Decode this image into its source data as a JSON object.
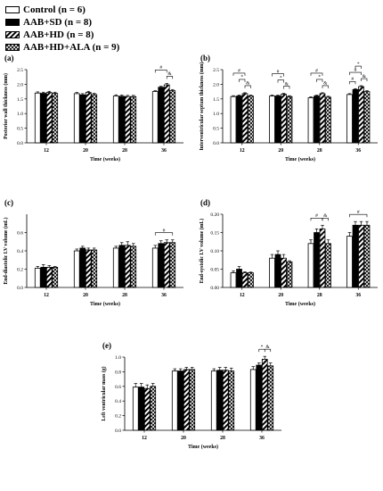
{
  "legend": [
    {
      "label": "Control (n = 6)",
      "pattern": "white"
    },
    {
      "label": "AAB+SD (n = 8)",
      "pattern": "black"
    },
    {
      "label": "AAB+HD (n = 8)",
      "pattern": "stripe"
    },
    {
      "label": "AAB+HD+ALA (n = 9)",
      "pattern": "cross"
    }
  ],
  "colors": {
    "bar_fill": "#ffffff",
    "bar_dark": "#000000",
    "axis": "#000000"
  },
  "chart_data": [
    {
      "type": "bar",
      "panel": "(a)",
      "xlabel": "Time (weeks)",
      "ylabel": "Posterior wall thickness (mm)",
      "categories": [
        "12",
        "20",
        "28",
        "36"
      ],
      "ylim": [
        0,
        2.5
      ],
      "yticks": [
        "0.0",
        "0.5",
        "1.0",
        "1.5",
        "2.0",
        "2.5"
      ],
      "series": [
        {
          "name": "Control (n = 6)",
          "values": [
            1.7,
            1.68,
            1.6,
            1.75
          ],
          "errors": [
            0.04,
            0.04,
            0.04,
            0.03
          ]
        },
        {
          "name": "AAB+SD (n = 8)",
          "values": [
            1.69,
            1.64,
            1.59,
            1.9
          ],
          "errors": [
            0.04,
            0.04,
            0.04,
            0.03
          ]
        },
        {
          "name": "AAB+HD (n = 8)",
          "values": [
            1.72,
            1.72,
            1.58,
            1.98
          ],
          "errors": [
            0.04,
            0.04,
            0.04,
            0.05
          ]
        },
        {
          "name": "AAB+HD+ALA (n = 9)",
          "values": [
            1.69,
            1.65,
            1.58,
            1.78
          ],
          "errors": [
            0.04,
            0.04,
            0.04,
            0.04
          ]
        }
      ],
      "annotations": [
        {
          "label": "#",
          "category": "36",
          "from": 0,
          "to": 2,
          "level": 1
        },
        {
          "label": "&",
          "category": "36",
          "from": 2,
          "to": 3,
          "level": 0
        }
      ]
    },
    {
      "type": "bar",
      "panel": "(b)",
      "xlabel": "Time (weeks)",
      "ylabel": "Interventricular septum thickness (mm)",
      "categories": [
        "12",
        "20",
        "28",
        "36"
      ],
      "ylim": [
        0,
        2.5
      ],
      "yticks": [
        "0.0",
        "0.5",
        "1.0",
        "1.5",
        "2.0",
        "2.5"
      ],
      "series": [
        {
          "name": "Control (n = 6)",
          "values": [
            1.58,
            1.6,
            1.54,
            1.65
          ],
          "errors": [
            0.03,
            0.03,
            0.03,
            0.03
          ]
        },
        {
          "name": "AAB+SD (n = 8)",
          "values": [
            1.6,
            1.6,
            1.6,
            1.82
          ],
          "errors": [
            0.03,
            0.03,
            0.03,
            0.03
          ]
        },
        {
          "name": "AAB+HD (n = 8)",
          "values": [
            1.68,
            1.66,
            1.68,
            1.92
          ],
          "errors": [
            0.03,
            0.03,
            0.03,
            0.03
          ]
        },
        {
          "name": "AAB+HD+ALA (n = 9)",
          "values": [
            1.6,
            1.58,
            1.56,
            1.75
          ],
          "errors": [
            0.03,
            0.03,
            0.03,
            0.03
          ]
        }
      ],
      "annotations": [
        {
          "label": "#",
          "category": "12",
          "from": 0,
          "to": 2,
          "level": 2
        },
        {
          "label": "*",
          "category": "12",
          "from": 1,
          "to": 2,
          "level": 1
        },
        {
          "label": "&",
          "category": "12",
          "from": 2,
          "to": 3,
          "level": 0
        },
        {
          "label": "#",
          "category": "20",
          "from": 0,
          "to": 2,
          "level": 2
        },
        {
          "label": "*",
          "category": "20",
          "from": 1,
          "to": 2,
          "level": 1
        },
        {
          "label": "&",
          "category": "20",
          "from": 2,
          "to": 3,
          "level": 0
        },
        {
          "label": "#",
          "category": "28",
          "from": 0,
          "to": 2,
          "level": 2
        },
        {
          "label": "*",
          "category": "28",
          "from": 1,
          "to": 2,
          "level": 1
        },
        {
          "label": "&",
          "category": "28",
          "from": 2,
          "to": 3,
          "level": 0
        },
        {
          "label": "#",
          "category": "36",
          "from": 0,
          "to": 1,
          "level": 0
        },
        {
          "label": "#",
          "category": "36",
          "from": 0,
          "to": 2,
          "level": 1
        },
        {
          "label": "*",
          "category": "36",
          "from": 1,
          "to": 2,
          "level": 2
        },
        {
          "label": "&",
          "category": "36",
          "from": 2,
          "to": 3,
          "level": 0
        }
      ]
    },
    {
      "type": "bar",
      "panel": "(c)",
      "xlabel": "Time (weeks)",
      "ylabel": "End-diastolic LV volume (mL)",
      "categories": [
        "12",
        "20",
        "28",
        "36"
      ],
      "ylim": [
        0,
        0.8
      ],
      "yticks": [
        "0.0",
        "0.2",
        "0.4",
        "0.6"
      ],
      "series": [
        {
          "name": "Control (n = 6)",
          "values": [
            0.21,
            0.4,
            0.43,
            0.43
          ],
          "errors": [
            0.02,
            0.02,
            0.02,
            0.03
          ]
        },
        {
          "name": "AAB+SD (n = 8)",
          "values": [
            0.22,
            0.43,
            0.46,
            0.48
          ],
          "errors": [
            0.03,
            0.02,
            0.03,
            0.03
          ]
        },
        {
          "name": "AAB+HD (n = 8)",
          "values": [
            0.22,
            0.41,
            0.46,
            0.49
          ],
          "errors": [
            0.02,
            0.02,
            0.04,
            0.03
          ]
        },
        {
          "name": "AAB+HD+ALA (n = 9)",
          "values": [
            0.22,
            0.41,
            0.45,
            0.49
          ],
          "errors": [
            0.01,
            0.02,
            0.03,
            0.03
          ]
        }
      ],
      "annotations": [
        {
          "label": "#",
          "category": "36",
          "from": 0,
          "to": 3,
          "level": 0
        }
      ]
    },
    {
      "type": "bar",
      "panel": "(d)",
      "xlabel": "Time (weeks)",
      "ylabel": "End-systolic LV volume (mL)",
      "categories": [
        "12",
        "20",
        "28",
        "36"
      ],
      "ylim": [
        0,
        0.2
      ],
      "yticks": [
        "0.00",
        "0.05",
        "0.10",
        "0.15",
        "0.20"
      ],
      "series": [
        {
          "name": "Control (n = 6)",
          "values": [
            0.04,
            0.08,
            0.12,
            0.14
          ],
          "errors": [
            0.005,
            0.01,
            0.01,
            0.01
          ]
        },
        {
          "name": "AAB+SD (n = 8)",
          "values": [
            0.05,
            0.09,
            0.15,
            0.17
          ],
          "errors": [
            0.007,
            0.01,
            0.01,
            0.01
          ]
        },
        {
          "name": "AAB+HD (n = 8)",
          "values": [
            0.04,
            0.08,
            0.16,
            0.17
          ],
          "errors": [
            0.003,
            0.01,
            0.01,
            0.01
          ]
        },
        {
          "name": "AAB+HD+ALA (n = 9)",
          "values": [
            0.04,
            0.07,
            0.12,
            0.17
          ],
          "errors": [
            0.002,
            0.003,
            0.01,
            0.01
          ]
        }
      ],
      "annotations": [
        {
          "label": "#",
          "category": "28",
          "from": 0,
          "to": 2,
          "level": 0
        },
        {
          "label": "&",
          "category": "28",
          "from": 2,
          "to": 3,
          "level": 0
        },
        {
          "label": "#",
          "category": "36",
          "from": 0,
          "to": 3,
          "level": 0
        }
      ]
    },
    {
      "type": "bar",
      "panel": "(e)",
      "xlabel": "Time (weeks)",
      "ylabel": "Left ventricular mass (g)",
      "categories": [
        "12",
        "20",
        "28",
        "36"
      ],
      "ylim": [
        0,
        1.0
      ],
      "yticks": [
        "0.0",
        "0.2",
        "0.4",
        "0.6",
        "0.8",
        "1.0"
      ],
      "series": [
        {
          "name": "Control (n = 6)",
          "values": [
            0.59,
            0.81,
            0.81,
            0.83
          ],
          "errors": [
            0.05,
            0.03,
            0.03,
            0.04
          ]
        },
        {
          "name": "AAB+SD (n = 8)",
          "values": [
            0.59,
            0.81,
            0.82,
            0.89
          ],
          "errors": [
            0.05,
            0.03,
            0.04,
            0.03
          ]
        },
        {
          "name": "AAB+HD (n = 8)",
          "values": [
            0.57,
            0.83,
            0.82,
            0.97
          ],
          "errors": [
            0.05,
            0.03,
            0.04,
            0.04
          ]
        },
        {
          "name": "AAB+HD+ALA (n = 9)",
          "values": [
            0.6,
            0.83,
            0.81,
            0.88
          ],
          "errors": [
            0.04,
            0.03,
            0.04,
            0.04
          ]
        }
      ],
      "annotations": [
        {
          "label": "*",
          "category": "36",
          "from": 1,
          "to": 2,
          "level": 0
        },
        {
          "label": "&",
          "category": "36",
          "from": 2,
          "to": 3,
          "level": 0
        }
      ]
    }
  ]
}
